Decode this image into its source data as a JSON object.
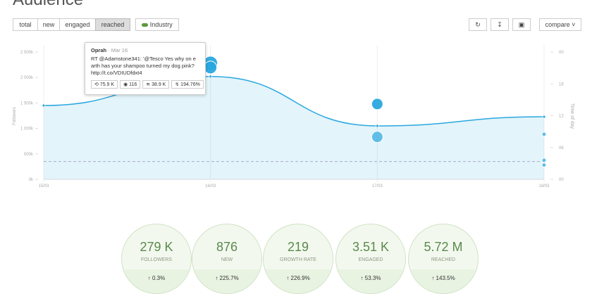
{
  "header": {
    "title": "Audience"
  },
  "toolbar": {
    "tabs": [
      "total",
      "new",
      "engaged",
      "reached"
    ],
    "active_tab": 3,
    "industry": "Industry",
    "compare": "compare"
  },
  "chart_data": {
    "type": "line",
    "x": [
      "15/03",
      "16/03",
      "17/03",
      "18/03"
    ],
    "ylabel": "Followers",
    "y2label": "Time of day",
    "series": [
      {
        "color": "#2aa7de",
        "values": [
          1450000,
          2020000,
          1050000,
          1230000
        ]
      }
    ],
    "threshold": 350000,
    "bubbles": {
      "type": "bubble",
      "axis": "y2",
      "color": "#2aa7de",
      "x": [
        "16/03",
        "16/03",
        "17/03",
        "17/03",
        "18/03",
        "18/03",
        "18/03"
      ],
      "values": [
        21.9,
        21.1,
        14.2,
        8.0,
        8.5,
        3.6,
        2.7
      ],
      "sizes": [
        10,
        9,
        8,
        8,
        3,
        3,
        3
      ]
    },
    "ylim": [
      0,
      2500000
    ],
    "yticks": [
      {
        "value": 0,
        "label": "0k"
      },
      {
        "value": 500000,
        "label": "500k"
      },
      {
        "value": 1000000,
        "label": "1 000k"
      },
      {
        "value": 1500000,
        "label": "1 500k"
      },
      {
        "value": 2000000,
        "label": "2 000k"
      },
      {
        "value": 2500000,
        "label": "2 500k"
      }
    ],
    "y2lim": [
      0,
      24
    ],
    "y2ticks": [
      {
        "value": 0,
        "label": "00"
      },
      {
        "value": 6,
        "label": "06"
      },
      12,
      18,
      {
        "value": 24,
        "label": "00"
      }
    ]
  },
  "tooltip": {
    "author": "Oprah",
    "date": "Mar 16",
    "text": "RT @Adamstone341: '@Tesco Yes why on e arth has your shampoo turned my dog pink? http://t.co/VDIUDfdxt4",
    "stats": [
      "75.9 K",
      "116",
      "38.9 K",
      "194.76%"
    ]
  },
  "stats": [
    {
      "value": "279 K",
      "label": "FOLLOWERS",
      "change": "0.3%"
    },
    {
      "value": "876",
      "label": "NEW",
      "change": "225.7%"
    },
    {
      "value": "219",
      "label": "GROWTH RATE",
      "change": "226.9%"
    },
    {
      "value": "3.51 K",
      "label": "ENGAGED",
      "change": "53.3%"
    },
    {
      "value": "5.72 M",
      "label": "REACHED",
      "change": "143.5%"
    }
  ]
}
